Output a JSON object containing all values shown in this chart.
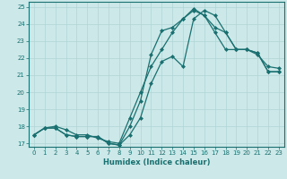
{
  "xlabel": "Humidex (Indice chaleur)",
  "ylabel": "",
  "xlim": [
    -0.5,
    23.5
  ],
  "ylim": [
    16.8,
    25.3
  ],
  "yticks": [
    17,
    18,
    19,
    20,
    21,
    22,
    23,
    24,
    25
  ],
  "xticks": [
    0,
    1,
    2,
    3,
    4,
    5,
    6,
    7,
    8,
    9,
    10,
    11,
    12,
    13,
    14,
    15,
    16,
    17,
    18,
    19,
    20,
    21,
    22,
    23
  ],
  "bg_color": "#cce8e8",
  "grid_color": "#b0d4d4",
  "line_color": "#1a7070",
  "lines": [
    {
      "x": [
        0,
        1,
        2,
        3,
        4,
        5,
        6,
        7,
        8,
        9,
        10,
        11,
        12,
        13,
        14,
        15,
        16,
        17,
        18,
        19,
        20,
        21,
        22,
        23
      ],
      "y": [
        17.5,
        17.9,
        17.9,
        17.5,
        17.4,
        17.4,
        17.4,
        17.0,
        16.9,
        17.5,
        18.5,
        20.5,
        21.8,
        22.1,
        21.5,
        24.3,
        24.8,
        24.5,
        23.5,
        22.5,
        22.5,
        22.3,
        21.2,
        21.2
      ]
    },
    {
      "x": [
        0,
        1,
        2,
        3,
        4,
        5,
        6,
        7,
        8,
        9,
        10,
        11,
        12,
        13,
        14,
        15,
        16,
        17,
        18,
        19,
        20,
        21,
        22,
        23
      ],
      "y": [
        17.5,
        17.9,
        17.9,
        17.5,
        17.4,
        17.4,
        17.4,
        17.0,
        16.9,
        18.0,
        19.5,
        22.2,
        23.6,
        23.8,
        24.3,
        24.9,
        24.5,
        23.8,
        23.5,
        22.5,
        22.5,
        22.3,
        21.2,
        21.2
      ]
    },
    {
      "x": [
        0,
        1,
        2,
        3,
        4,
        5,
        6,
        7,
        8,
        9,
        10,
        11,
        12,
        13,
        14,
        15,
        16,
        17,
        18,
        19,
        20,
        21,
        22,
        23
      ],
      "y": [
        17.5,
        17.9,
        18.0,
        17.8,
        17.5,
        17.5,
        17.3,
        17.1,
        17.0,
        18.5,
        20.0,
        21.5,
        22.5,
        23.5,
        24.3,
        24.8,
        24.5,
        23.5,
        22.5,
        22.5,
        22.5,
        22.2,
        21.5,
        21.4
      ]
    }
  ],
  "tick_fontsize": 5.0,
  "xlabel_fontsize": 6.0,
  "marker_size": 2.0,
  "line_width": 0.9
}
